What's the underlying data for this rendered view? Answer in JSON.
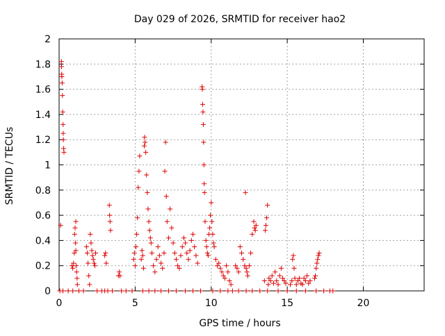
{
  "chart_data": {
    "type": "scatter",
    "title": "Day 029 of 2026, SRMTID for receiver hao2",
    "xlabel": "GPS time / hours",
    "ylabel": "SRMTID / TECUs",
    "xlim": [
      0,
      24
    ],
    "ylim": [
      0,
      2
    ],
    "xticks": [
      0,
      5,
      10,
      15,
      20
    ],
    "yticks": [
      0,
      0.2,
      0.4,
      0.6,
      0.8,
      1,
      1.2,
      1.4,
      1.6,
      1.8,
      2
    ],
    "xtick_labels": [
      "0",
      "5",
      "10",
      "15",
      "20"
    ],
    "ytick_labels": [
      "0",
      "0.2",
      "0.4",
      "0.6",
      "0.8",
      "1",
      "1.2",
      "1.4",
      "1.6",
      "1.8",
      "2"
    ],
    "grid": true,
    "legend": "none",
    "marker": "+",
    "color": "#dd0000",
    "series": [
      {
        "values": [
          [
            0.15,
            1.82
          ],
          [
            0.16,
            1.78
          ],
          [
            0.17,
            1.72
          ],
          [
            0.18,
            1.7
          ],
          [
            0.2,
            1.65
          ],
          [
            0.22,
            1.55
          ],
          [
            0.24,
            1.42
          ],
          [
            0.26,
            1.32
          ],
          [
            0.27,
            1.25
          ],
          [
            0.28,
            1.2
          ],
          [
            0.3,
            1.13
          ],
          [
            0.32,
            1.1
          ],
          [
            0.1,
            0.52
          ],
          [
            0.85,
            0.2
          ],
          [
            0.9,
            0.18
          ],
          [
            0.95,
            0.22
          ],
          [
            1.0,
            0.3
          ],
          [
            1.02,
            0.45
          ],
          [
            1.05,
            0.5
          ],
          [
            1.08,
            0.38
          ],
          [
            1.1,
            0.32
          ],
          [
            1.12,
            0.2
          ],
          [
            1.15,
            0.15
          ],
          [
            1.18,
            0.1
          ],
          [
            1.2,
            0.05
          ],
          [
            1.1,
            0.55
          ],
          [
            1.8,
            0.35
          ],
          [
            1.85,
            0.3
          ],
          [
            1.9,
            0.22
          ],
          [
            1.95,
            0.12
          ],
          [
            2.0,
            0.05
          ],
          [
            2.05,
            0.45
          ],
          [
            2.1,
            0.38
          ],
          [
            2.15,
            0.32
          ],
          [
            2.2,
            0.28
          ],
          [
            2.25,
            0.25
          ],
          [
            2.3,
            0.22
          ],
          [
            2.35,
            0.2
          ],
          [
            2.4,
            0.3
          ],
          [
            3.0,
            0.28
          ],
          [
            3.05,
            0.3
          ],
          [
            3.1,
            0.22
          ],
          [
            3.3,
            0.68
          ],
          [
            3.32,
            0.6
          ],
          [
            3.35,
            0.55
          ],
          [
            3.38,
            0.48
          ],
          [
            3.9,
            0.12
          ],
          [
            3.95,
            0.15
          ],
          [
            4.0,
            0.12
          ],
          [
            4.9,
            0.25
          ],
          [
            4.95,
            0.3
          ],
          [
            5.0,
            0.2
          ],
          [
            5.05,
            0.35
          ],
          [
            5.1,
            0.45
          ],
          [
            5.15,
            0.58
          ],
          [
            5.2,
            0.82
          ],
          [
            5.25,
            0.95
          ],
          [
            5.3,
            1.07
          ],
          [
            5.4,
            0.25
          ],
          [
            5.45,
            0.32
          ],
          [
            5.5,
            0.28
          ],
          [
            5.55,
            0.18
          ],
          [
            5.6,
            1.15
          ],
          [
            5.62,
            1.22
          ],
          [
            5.65,
            1.18
          ],
          [
            5.7,
            1.1
          ],
          [
            5.75,
            0.92
          ],
          [
            5.8,
            0.78
          ],
          [
            5.85,
            0.65
          ],
          [
            5.9,
            0.55
          ],
          [
            5.95,
            0.48
          ],
          [
            6.0,
            0.42
          ],
          [
            6.05,
            0.38
          ],
          [
            6.1,
            0.3
          ],
          [
            6.2,
            0.2
          ],
          [
            6.3,
            0.15
          ],
          [
            6.4,
            0.25
          ],
          [
            6.5,
            0.35
          ],
          [
            6.6,
            0.28
          ],
          [
            6.7,
            0.22
          ],
          [
            6.8,
            0.18
          ],
          [
            6.9,
            0.3
          ],
          [
            6.95,
            0.95
          ],
          [
            7.0,
            1.18
          ],
          [
            7.05,
            0.75
          ],
          [
            7.1,
            0.55
          ],
          [
            7.2,
            0.42
          ],
          [
            7.3,
            0.65
          ],
          [
            7.4,
            0.5
          ],
          [
            7.5,
            0.38
          ],
          [
            7.6,
            0.3
          ],
          [
            7.7,
            0.25
          ],
          [
            7.8,
            0.2
          ],
          [
            7.9,
            0.18
          ],
          [
            8.0,
            0.28
          ],
          [
            8.1,
            0.35
          ],
          [
            8.2,
            0.42
          ],
          [
            8.3,
            0.38
          ],
          [
            8.4,
            0.3
          ],
          [
            8.5,
            0.25
          ],
          [
            8.6,
            0.32
          ],
          [
            8.7,
            0.4
          ],
          [
            8.8,
            0.45
          ],
          [
            8.9,
            0.35
          ],
          [
            9.0,
            0.28
          ],
          [
            9.1,
            0.22
          ],
          [
            9.4,
            1.62
          ],
          [
            9.42,
            1.6
          ],
          [
            9.44,
            1.48
          ],
          [
            9.46,
            1.42
          ],
          [
            9.48,
            1.32
          ],
          [
            9.5,
            1.18
          ],
          [
            9.52,
            1.0
          ],
          [
            9.54,
            0.85
          ],
          [
            9.56,
            0.78
          ],
          [
            9.6,
            0.55
          ],
          [
            9.65,
            0.4
          ],
          [
            9.7,
            0.35
          ],
          [
            9.75,
            0.3
          ],
          [
            9.8,
            0.28
          ],
          [
            9.85,
            0.45
          ],
          [
            9.9,
            0.5
          ],
          [
            9.95,
            0.6
          ],
          [
            10.0,
            0.7
          ],
          [
            10.05,
            0.55
          ],
          [
            10.1,
            0.45
          ],
          [
            10.15,
            0.38
          ],
          [
            10.2,
            0.35
          ],
          [
            10.3,
            0.25
          ],
          [
            10.4,
            0.2
          ],
          [
            10.5,
            0.22
          ],
          [
            10.6,
            0.18
          ],
          [
            10.7,
            0.15
          ],
          [
            10.8,
            0.12
          ],
          [
            10.9,
            0.1
          ],
          [
            11.0,
            0.2
          ],
          [
            11.1,
            0.15
          ],
          [
            11.2,
            0.08
          ],
          [
            11.3,
            0.05
          ],
          [
            11.6,
            0.2
          ],
          [
            11.7,
            0.18
          ],
          [
            11.8,
            0.15
          ],
          [
            11.9,
            0.35
          ],
          [
            12.0,
            0.3
          ],
          [
            12.1,
            0.25
          ],
          [
            12.2,
            0.2
          ],
          [
            12.25,
            0.78
          ],
          [
            12.3,
            0.18
          ],
          [
            12.35,
            0.15
          ],
          [
            12.4,
            0.12
          ],
          [
            12.5,
            0.2
          ],
          [
            12.6,
            0.3
          ],
          [
            12.7,
            0.45
          ],
          [
            12.8,
            0.55
          ],
          [
            12.85,
            0.5
          ],
          [
            12.9,
            0.48
          ],
          [
            12.95,
            0.52
          ],
          [
            13.5,
            0.08
          ],
          [
            13.55,
            0.48
          ],
          [
            13.6,
            0.52
          ],
          [
            13.65,
            0.58
          ],
          [
            13.7,
            0.68
          ],
          [
            13.75,
            0.05
          ],
          [
            13.8,
            0.1
          ],
          [
            13.9,
            0.08
          ],
          [
            14.0,
            0.12
          ],
          [
            14.1,
            0.06
          ],
          [
            14.2,
            0.15
          ],
          [
            14.3,
            0.08
          ],
          [
            14.4,
            0.05
          ],
          [
            14.5,
            0.12
          ],
          [
            14.6,
            0.18
          ],
          [
            14.7,
            0.1
          ],
          [
            14.8,
            0.08
          ],
          [
            14.9,
            0.06
          ],
          [
            15.2,
            0.05
          ],
          [
            15.3,
            0.08
          ],
          [
            15.35,
            0.25
          ],
          [
            15.4,
            0.28
          ],
          [
            15.45,
            0.18
          ],
          [
            15.5,
            0.1
          ],
          [
            15.6,
            0.05
          ],
          [
            15.7,
            0.08
          ],
          [
            15.8,
            0.1
          ],
          [
            15.9,
            0.06
          ],
          [
            16.0,
            0.05
          ],
          [
            16.1,
            0.1
          ],
          [
            16.2,
            0.08
          ],
          [
            16.3,
            0.12
          ],
          [
            16.4,
            0.06
          ],
          [
            16.5,
            0.08
          ],
          [
            16.8,
            0.1
          ],
          [
            16.85,
            0.12
          ],
          [
            16.9,
            0.18
          ],
          [
            16.95,
            0.22
          ],
          [
            17.0,
            0.25
          ],
          [
            17.05,
            0.28
          ],
          [
            17.1,
            0.3
          ],
          [
            0.05,
            0
          ],
          [
            0.25,
            0
          ],
          [
            0.6,
            0
          ],
          [
            0.9,
            0
          ],
          [
            1.3,
            0
          ],
          [
            1.6,
            0
          ],
          [
            2.5,
            0
          ],
          [
            2.8,
            0
          ],
          [
            3.0,
            0
          ],
          [
            3.2,
            0
          ],
          [
            3.5,
            0
          ],
          [
            4.1,
            0
          ],
          [
            4.4,
            0
          ],
          [
            4.8,
            0
          ],
          [
            5.5,
            0
          ],
          [
            5.9,
            0
          ],
          [
            6.3,
            0
          ],
          [
            6.7,
            0
          ],
          [
            7.2,
            0
          ],
          [
            7.7,
            0
          ],
          [
            8.3,
            0
          ],
          [
            8.8,
            0
          ],
          [
            9.3,
            0
          ],
          [
            10.1,
            0
          ],
          [
            10.6,
            0
          ],
          [
            11.1,
            0
          ],
          [
            11.4,
            0
          ],
          [
            11.8,
            0
          ],
          [
            12.3,
            0
          ],
          [
            12.7,
            0
          ],
          [
            13.2,
            0
          ],
          [
            13.7,
            0
          ],
          [
            14.4,
            0
          ],
          [
            15.0,
            0
          ],
          [
            15.6,
            0
          ],
          [
            16.2,
            0
          ],
          [
            16.9,
            0
          ],
          [
            17.4,
            0
          ],
          [
            17.8,
            0
          ],
          [
            18.0,
            0
          ]
        ]
      }
    ]
  }
}
